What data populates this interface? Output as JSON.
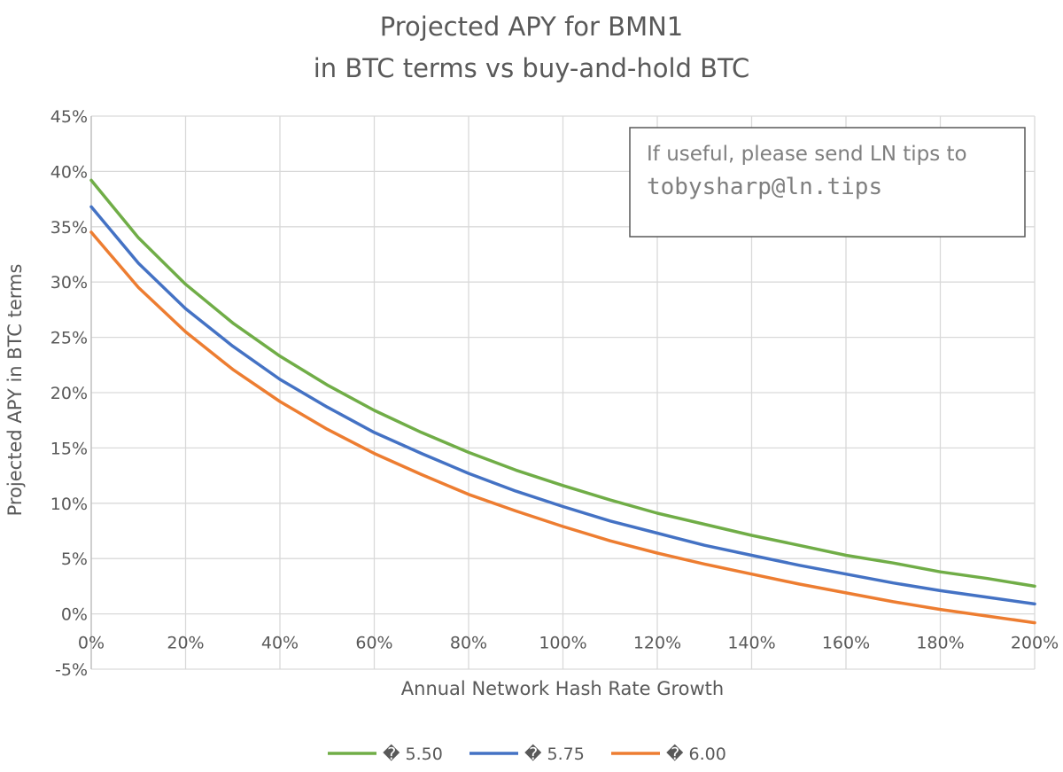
{
  "chart_data": {
    "type": "line",
    "title_lines": [
      "Projected APY for BMN1",
      "in BTC terms vs buy-and-hold BTC"
    ],
    "xlabel": "Annual Network Hash Rate Growth",
    "ylabel": "Projected APY in BTC terms",
    "xlim": [
      0,
      200
    ],
    "ylim": [
      -5,
      45
    ],
    "x_ticks": [
      0,
      20,
      40,
      60,
      80,
      100,
      120,
      140,
      160,
      180,
      200
    ],
    "x_tick_labels": [
      "0%",
      "20%",
      "40%",
      "60%",
      "80%",
      "100%",
      "120%",
      "140%",
      "160%",
      "180%",
      "200%"
    ],
    "y_ticks": [
      -5,
      0,
      5,
      10,
      15,
      20,
      25,
      30,
      35,
      40,
      45
    ],
    "y_tick_labels": [
      "-5%",
      "0%",
      "5%",
      "10%",
      "15%",
      "20%",
      "25%",
      "30%",
      "35%",
      "40%",
      "45%"
    ],
    "grid": true,
    "legend_position": "bottom",
    "x": [
      0,
      10,
      20,
      30,
      40,
      50,
      60,
      70,
      80,
      90,
      100,
      110,
      120,
      130,
      140,
      150,
      160,
      170,
      180,
      190,
      200
    ],
    "series": [
      {
        "name": "� 5.50",
        "color": "#70ad47",
        "values": [
          39.2,
          34.0,
          29.8,
          26.3,
          23.3,
          20.7,
          18.4,
          16.4,
          14.6,
          13.0,
          11.6,
          10.3,
          9.1,
          8.1,
          7.1,
          6.2,
          5.3,
          4.6,
          3.8,
          3.2,
          2.5
        ]
      },
      {
        "name": "� 5.75",
        "color": "#4472c4",
        "values": [
          36.8,
          31.7,
          27.6,
          24.2,
          21.2,
          18.7,
          16.4,
          14.5,
          12.7,
          11.1,
          9.7,
          8.4,
          7.3,
          6.2,
          5.3,
          4.4,
          3.6,
          2.8,
          2.1,
          1.5,
          0.9
        ]
      },
      {
        "name": "� 6.00",
        "color": "#ed7d31",
        "values": [
          34.5,
          29.5,
          25.5,
          22.1,
          19.2,
          16.7,
          14.5,
          12.6,
          10.8,
          9.3,
          7.9,
          6.6,
          5.5,
          4.5,
          3.6,
          2.7,
          1.9,
          1.1,
          0.4,
          -0.2,
          -0.8
        ]
      }
    ]
  },
  "note": {
    "line1": "If useful, please send LN tips to",
    "line2": "tobysharp@ln.tips"
  }
}
